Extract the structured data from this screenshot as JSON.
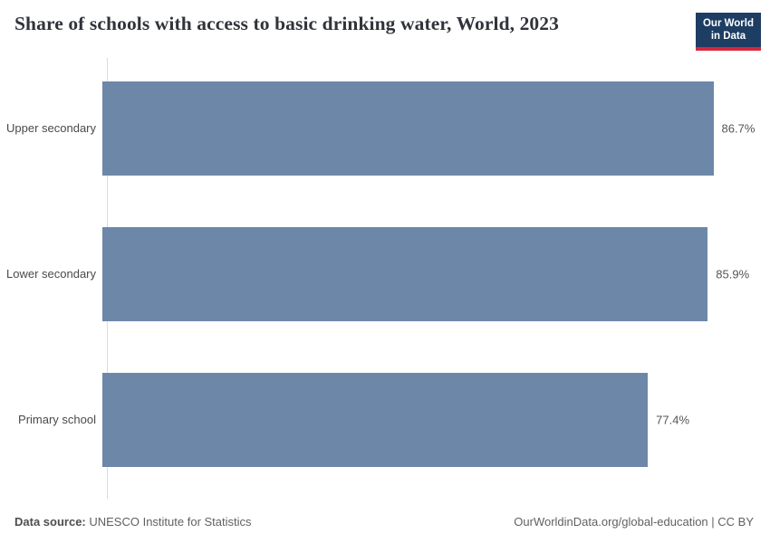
{
  "header": {
    "title": "Share of schools with access to basic drinking water, World, 2023",
    "logo": {
      "line1": "Our World",
      "line2": "in Data",
      "bg_color": "#1d3d63",
      "accent_color": "#d7263d"
    }
  },
  "chart_data": {
    "type": "bar",
    "orientation": "horizontal",
    "title": "Share of schools with access to basic drinking water, World, 2023",
    "categories": [
      "Upper secondary",
      "Lower secondary",
      "Primary school"
    ],
    "values": [
      86.7,
      85.9,
      77.4
    ],
    "value_labels": [
      "86.7%",
      "85.9%",
      "77.4%"
    ],
    "bar_color": "#6d87a9",
    "xlim": [
      0,
      86.7
    ],
    "grid": "off",
    "legend": "none"
  },
  "footer": {
    "source_label": "Data source:",
    "source_text": " UNESCO Institute for Statistics",
    "right_text": "OurWorldinData.org/global-education | CC BY"
  }
}
